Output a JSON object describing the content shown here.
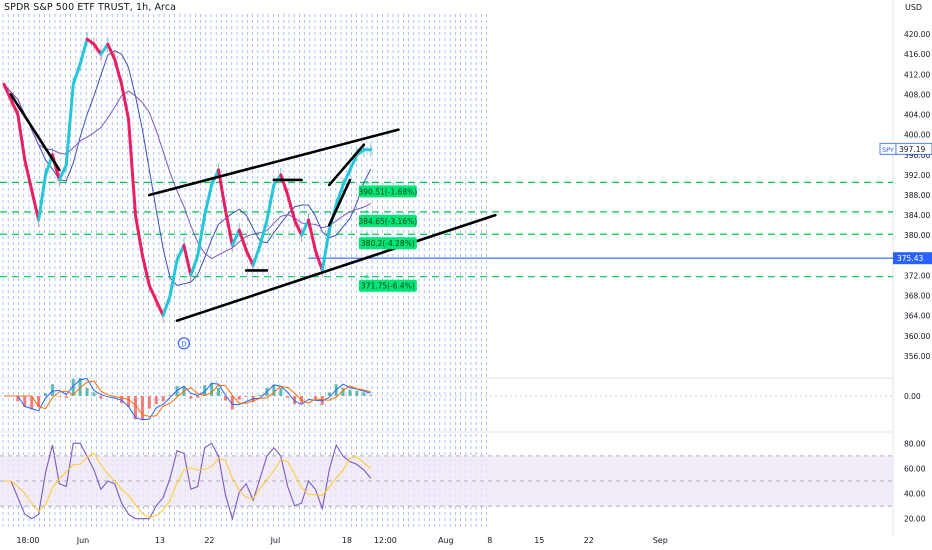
{
  "header": {
    "title": "SPDR S&P 500 ETF TRUST, 1h, Arca",
    "currency": "USD"
  },
  "colors": {
    "background": "#ffffff",
    "grid_vertical": "#2962ff",
    "trend_up": "#26c6da",
    "trend_down": "#e91e63",
    "ma_blue": "#3f51b5",
    "ma_purple": "#7e57c2",
    "level_dashed": "#00c853",
    "level_label_bg": "#00e676",
    "price_line": "#2962ff",
    "last_label_bg": "#2962ff",
    "rsi_band": "#ede7f6",
    "rsi_line": "#7e57c2",
    "rsi_signal": "#ffca28",
    "macd_line": "#2962ff",
    "macd_signal": "#ff6d00",
    "hist_up": "#26a69a",
    "hist_down": "#ef5350"
  },
  "chart_data": {
    "type": "line",
    "title": "SPDR S&P 500 ETF TRUST, 1h, Arca",
    "symbol": "SPY",
    "currency": "USD",
    "price_axis": {
      "ticks": [
        "420.00",
        "416.00",
        "412.00",
        "408.00",
        "404.00",
        "400.00",
        "396.00",
        "392.00",
        "388.00",
        "384.00",
        "380.00",
        "376.00",
        "372.00",
        "368.00",
        "364.00",
        "360.00",
        "356.00"
      ],
      "range": [
        352,
        424
      ]
    },
    "time_axis": {
      "labels": [
        "18:00",
        "Jun",
        "13",
        "22",
        "Jul",
        "18",
        "12:00",
        "Aug",
        "8",
        "15",
        "22",
        "Sep"
      ],
      "index_range": [
        0,
        100
      ]
    },
    "price_series": {
      "name": "SPY",
      "x": [
        0,
        1,
        2,
        3,
        4,
        5,
        6,
        7,
        8,
        9,
        10,
        11,
        12,
        13,
        14,
        15,
        16,
        17,
        18,
        19,
        20,
        21,
        22,
        23,
        24,
        25,
        26,
        27,
        28,
        29,
        30,
        31,
        32,
        33,
        34,
        35,
        36,
        37,
        38,
        39,
        40,
        41,
        42,
        43,
        44,
        45,
        46,
        47,
        48,
        49,
        50,
        51,
        52,
        53,
        54,
        55,
        56,
        57,
        58,
        59,
        60,
        61,
        62,
        63,
        64,
        65,
        66,
        67,
        68,
        69,
        70
      ],
      "y": [
        410,
        407,
        404,
        395,
        389,
        383,
        392,
        396,
        391,
        394,
        410,
        414,
        419,
        418,
        416,
        418,
        415,
        410,
        403,
        384,
        376,
        370,
        367,
        364,
        368,
        375,
        378,
        372,
        376,
        384,
        390,
        393,
        385,
        378,
        381,
        377,
        374,
        378,
        383,
        390,
        392,
        388,
        383,
        380,
        383,
        377,
        373,
        381,
        386,
        390,
        393,
        396,
        397,
        397,
        397,
        397,
        397,
        397,
        397,
        397,
        397,
        397,
        397,
        397,
        397,
        397,
        397,
        397,
        397,
        397,
        397
      ]
    },
    "last_price": 397.19,
    "horizontal_line": {
      "value": 375.43,
      "label": "375.43"
    },
    "levels": [
      {
        "price": 390.51,
        "label": "390.51(-1.68%)"
      },
      {
        "price": 384.65,
        "label": "384.65(-3.16%)"
      },
      {
        "price": 380.2,
        "label": "380.2(-4.28%)"
      },
      {
        "price": 371.75,
        "label": "371.75(-6.4%)"
      }
    ],
    "macd_panel": {
      "zero_label": "0.00"
    },
    "rsi_panel": {
      "ticks": [
        "80.00",
        "60.00",
        "40.00",
        "20.00"
      ],
      "range": [
        15,
        85
      ],
      "band": [
        30,
        70
      ]
    },
    "event_marker": "D"
  },
  "price_scale_tag": {
    "symbol": "SPY",
    "value": "397.19"
  }
}
